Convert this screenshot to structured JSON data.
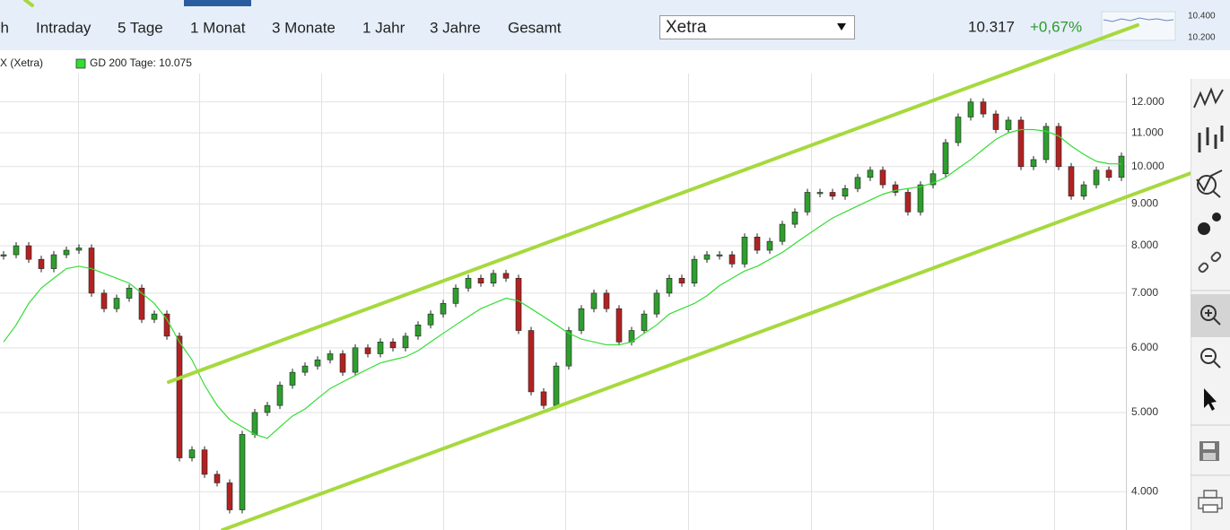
{
  "toolbar": {
    "buttons": [
      "sh",
      "Intraday",
      "5 Tage",
      "1 Monat",
      "3 Monate",
      "1 Jahr",
      "3 Jahre",
      "Gesamt"
    ],
    "exchange": "Xetra",
    "price": "10.317",
    "change": "+0,67%",
    "mini_chart_labels": [
      "10.400",
      "10.200"
    ]
  },
  "chart_data": {
    "type": "candlestick",
    "log": true,
    "grid": true,
    "ylim": [
      3590,
      13000
    ],
    "yticks": [
      {
        "value": 4000,
        "label": "4.000"
      },
      {
        "value": 5000,
        "label": "5.000"
      },
      {
        "value": 6000,
        "label": "6.000"
      },
      {
        "value": 7000,
        "label": "7.000"
      },
      {
        "value": 8000,
        "label": "8.000"
      },
      {
        "value": 9000,
        "label": "9.000"
      },
      {
        "value": 10000,
        "label": "10.000"
      },
      {
        "value": 11000,
        "label": "11.000"
      },
      {
        "value": 12000,
        "label": "12.000"
      }
    ],
    "series": [
      {
        "name": "X (Xetra)",
        "color": "#222222",
        "up_color": "#2e9e2e",
        "down_color": "#b22222",
        "values": [
          7800,
          8000,
          7700,
          7500,
          7800,
          7900,
          7950,
          7000,
          6700,
          6900,
          7100,
          6500,
          6600,
          6200,
          4400,
          4500,
          4200,
          4100,
          3800,
          4700,
          5000,
          5100,
          5400,
          5600,
          5700,
          5800,
          5900,
          5600,
          6000,
          5900,
          6100,
          6000,
          6200,
          6400,
          6600,
          6800,
          7100,
          7300,
          7200,
          7400,
          7300,
          6300,
          5300,
          5100,
          5700,
          6300,
          6700,
          7000,
          6700,
          6100,
          6300,
          6600,
          7000,
          7300,
          7200,
          7700,
          7800,
          7800,
          7600,
          8200,
          7900,
          8100,
          8500,
          8800,
          9300,
          9300,
          9200,
          9400,
          9700,
          9900,
          9500,
          9300,
          8800,
          9500,
          9800,
          10700,
          11500,
          12000,
          11600,
          11100,
          11400,
          10000,
          10200,
          11200,
          10000,
          9200,
          9500,
          9900,
          9700,
          10300
        ]
      },
      {
        "name": "GD 200 Tage: 10.075",
        "color": "#33dd33",
        "values": [
          6100,
          6400,
          6800,
          7100,
          7300,
          7500,
          7550,
          7500,
          7400,
          7300,
          7200,
          7000,
          6800,
          6500,
          6100,
          5800,
          5400,
          5100,
          4900,
          4800,
          4700,
          4650,
          4800,
          4950,
          5050,
          5200,
          5350,
          5450,
          5550,
          5650,
          5750,
          5800,
          5850,
          5950,
          6100,
          6250,
          6400,
          6550,
          6700,
          6800,
          6900,
          6850,
          6700,
          6550,
          6400,
          6250,
          6150,
          6100,
          6050,
          6050,
          6100,
          6250,
          6400,
          6600,
          6700,
          6800,
          6950,
          7150,
          7300,
          7450,
          7550,
          7700,
          7850,
          8050,
          8250,
          8450,
          8650,
          8800,
          8950,
          9100,
          9250,
          9350,
          9400,
          9450,
          9550,
          9700,
          9950,
          10200,
          10500,
          10800,
          11000,
          11100,
          11100,
          11050,
          10900,
          10600,
          10350,
          10150,
          10080,
          10075
        ]
      }
    ]
  }
}
